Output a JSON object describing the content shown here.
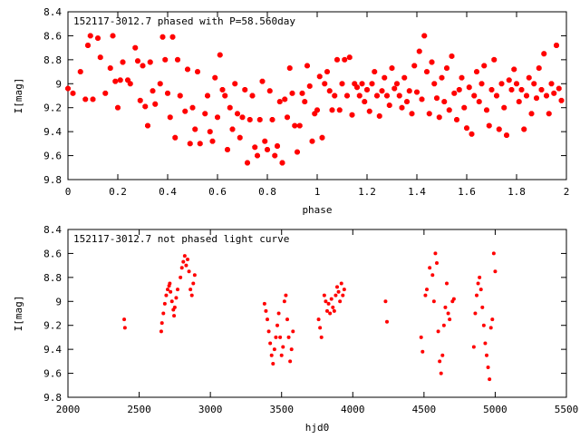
{
  "chart_data": [
    {
      "type": "scatter",
      "title": "152117-3012.7 phased with P=58.560day",
      "xlabel": "phase",
      "ylabel": "I[mag]",
      "xlim": [
        0,
        2
      ],
      "ylim": [
        8.4,
        9.8
      ],
      "y_inverted": true,
      "x_ticks": [
        "0",
        "0.2",
        "0.4",
        "0.6",
        "0.8",
        "1",
        "1.2",
        "1.4",
        "1.6",
        "1.8",
        "2"
      ],
      "y_ticks": [
        "8.4",
        "8.6",
        "8.8",
        "9",
        "9.2",
        "9.4",
        "9.6",
        "9.8"
      ],
      "grid": false,
      "marker_color": "#ff0000",
      "points": [
        [
          0.0,
          9.04
        ],
        [
          0.02,
          9.08
        ],
        [
          0.05,
          8.9
        ],
        [
          0.07,
          9.13
        ],
        [
          0.08,
          8.68
        ],
        [
          0.09,
          8.6
        ],
        [
          0.1,
          9.13
        ],
        [
          0.12,
          8.62
        ],
        [
          0.13,
          8.78
        ],
        [
          0.15,
          9.08
        ],
        [
          0.17,
          8.87
        ],
        [
          0.18,
          8.6
        ],
        [
          0.19,
          8.98
        ],
        [
          0.2,
          9.2
        ],
        [
          0.21,
          8.97
        ],
        [
          0.22,
          8.82
        ],
        [
          0.24,
          8.97
        ],
        [
          0.25,
          9.0
        ],
        [
          0.27,
          8.7
        ],
        [
          0.28,
          8.81
        ],
        [
          0.29,
          9.14
        ],
        [
          0.3,
          8.85
        ],
        [
          0.31,
          9.19
        ],
        [
          0.32,
          9.35
        ],
        [
          0.33,
          8.82
        ],
        [
          0.34,
          9.06
        ],
        [
          0.35,
          9.17
        ],
        [
          0.37,
          9.0
        ],
        [
          0.38,
          8.61
        ],
        [
          0.39,
          8.8
        ],
        [
          0.4,
          9.08
        ],
        [
          0.41,
          9.28
        ],
        [
          0.42,
          8.61
        ],
        [
          0.43,
          9.45
        ],
        [
          0.44,
          8.8
        ],
        [
          0.45,
          9.1
        ],
        [
          0.47,
          9.23
        ],
        [
          0.48,
          8.88
        ],
        [
          0.49,
          9.5
        ],
        [
          0.5,
          9.2
        ],
        [
          0.51,
          9.38
        ],
        [
          0.52,
          8.9
        ],
        [
          0.53,
          9.5
        ],
        [
          0.55,
          9.25
        ],
        [
          0.56,
          9.1
        ],
        [
          0.57,
          9.4
        ],
        [
          0.58,
          9.48
        ],
        [
          0.59,
          8.95
        ],
        [
          0.6,
          9.28
        ],
        [
          0.61,
          8.76
        ],
        [
          0.62,
          9.05
        ],
        [
          0.63,
          9.1
        ],
        [
          0.64,
          9.55
        ],
        [
          0.65,
          9.2
        ],
        [
          0.66,
          9.38
        ],
        [
          0.67,
          9.0
        ],
        [
          0.68,
          9.25
        ],
        [
          0.69,
          9.45
        ],
        [
          0.7,
          9.28
        ],
        [
          0.71,
          9.05
        ],
        [
          0.72,
          9.66
        ],
        [
          0.73,
          9.3
        ],
        [
          0.74,
          9.1
        ],
        [
          0.75,
          9.53
        ],
        [
          0.76,
          9.6
        ],
        [
          0.77,
          9.3
        ],
        [
          0.78,
          8.98
        ],
        [
          0.79,
          9.48
        ],
        [
          0.8,
          9.55
        ],
        [
          0.81,
          9.06
        ],
        [
          0.82,
          9.3
        ],
        [
          0.83,
          9.6
        ],
        [
          0.84,
          9.52
        ],
        [
          0.85,
          9.15
        ],
        [
          0.86,
          9.66
        ],
        [
          0.87,
          9.13
        ],
        [
          0.88,
          9.28
        ],
        [
          0.89,
          8.87
        ],
        [
          0.9,
          9.08
        ],
        [
          0.91,
          9.35
        ],
        [
          0.92,
          9.57
        ],
        [
          0.93,
          9.35
        ],
        [
          0.94,
          9.08
        ],
        [
          0.95,
          9.15
        ],
        [
          0.96,
          8.85
        ],
        [
          0.97,
          9.02
        ],
        [
          0.98,
          9.48
        ],
        [
          0.99,
          9.25
        ],
        [
          1.0,
          9.22
        ],
        [
          1.01,
          8.94
        ],
        [
          1.02,
          9.45
        ],
        [
          1.03,
          9.0
        ],
        [
          1.04,
          8.9
        ],
        [
          1.05,
          9.06
        ],
        [
          1.06,
          9.22
        ],
        [
          1.07,
          9.1
        ],
        [
          1.08,
          8.8
        ],
        [
          1.09,
          9.22
        ],
        [
          1.1,
          9.0
        ],
        [
          1.11,
          8.8
        ],
        [
          1.12,
          9.1
        ],
        [
          1.13,
          8.78
        ],
        [
          1.14,
          9.26
        ],
        [
          1.15,
          9.0
        ],
        [
          1.16,
          9.03
        ],
        [
          1.17,
          9.1
        ],
        [
          1.18,
          9.0
        ],
        [
          1.19,
          9.15
        ],
        [
          1.2,
          9.05
        ],
        [
          1.21,
          9.23
        ],
        [
          1.22,
          9.0
        ],
        [
          1.23,
          8.9
        ],
        [
          1.24,
          9.1
        ],
        [
          1.25,
          9.27
        ],
        [
          1.26,
          9.06
        ],
        [
          1.27,
          8.95
        ],
        [
          1.28,
          9.1
        ],
        [
          1.29,
          9.18
        ],
        [
          1.3,
          8.87
        ],
        [
          1.31,
          9.04
        ],
        [
          1.32,
          9.0
        ],
        [
          1.33,
          9.1
        ],
        [
          1.34,
          9.2
        ],
        [
          1.35,
          8.95
        ],
        [
          1.36,
          9.15
        ],
        [
          1.37,
          9.06
        ],
        [
          1.38,
          9.25
        ],
        [
          1.39,
          8.85
        ],
        [
          1.4,
          9.07
        ],
        [
          1.41,
          8.73
        ],
        [
          1.42,
          9.13
        ],
        [
          1.43,
          8.6
        ],
        [
          1.44,
          8.9
        ],
        [
          1.45,
          9.25
        ],
        [
          1.46,
          8.82
        ],
        [
          1.47,
          9.0
        ],
        [
          1.48,
          9.12
        ],
        [
          1.49,
          9.28
        ],
        [
          1.5,
          8.95
        ],
        [
          1.51,
          9.15
        ],
        [
          1.52,
          8.87
        ],
        [
          1.53,
          9.22
        ],
        [
          1.54,
          8.77
        ],
        [
          1.55,
          9.08
        ],
        [
          1.56,
          9.3
        ],
        [
          1.57,
          9.05
        ],
        [
          1.58,
          8.95
        ],
        [
          1.59,
          9.2
        ],
        [
          1.6,
          9.37
        ],
        [
          1.61,
          9.03
        ],
        [
          1.62,
          9.42
        ],
        [
          1.63,
          9.1
        ],
        [
          1.64,
          8.9
        ],
        [
          1.65,
          9.15
        ],
        [
          1.66,
          9.0
        ],
        [
          1.67,
          8.85
        ],
        [
          1.68,
          9.22
        ],
        [
          1.69,
          9.35
        ],
        [
          1.7,
          9.05
        ],
        [
          1.71,
          8.8
        ],
        [
          1.72,
          9.1
        ],
        [
          1.73,
          9.38
        ],
        [
          1.74,
          9.0
        ],
        [
          1.75,
          9.2
        ],
        [
          1.76,
          9.43
        ],
        [
          1.77,
          8.97
        ],
        [
          1.78,
          9.05
        ],
        [
          1.79,
          8.88
        ],
        [
          1.8,
          9.0
        ],
        [
          1.81,
          9.15
        ],
        [
          1.82,
          9.05
        ],
        [
          1.83,
          9.38
        ],
        [
          1.84,
          9.1
        ],
        [
          1.85,
          8.95
        ],
        [
          1.86,
          9.25
        ],
        [
          1.87,
          9.0
        ],
        [
          1.88,
          9.12
        ],
        [
          1.89,
          8.87
        ],
        [
          1.9,
          9.05
        ],
        [
          1.91,
          8.75
        ],
        [
          1.92,
          9.1
        ],
        [
          1.93,
          9.25
        ],
        [
          1.94,
          9.0
        ],
        [
          1.95,
          9.08
        ],
        [
          1.96,
          8.68
        ],
        [
          1.97,
          9.04
        ],
        [
          1.98,
          9.14
        ]
      ]
    },
    {
      "type": "scatter",
      "title": "152117-3012.7 not phased light curve",
      "xlabel": "hjd0",
      "ylabel": "I[mag]",
      "xlim": [
        2000,
        5500
      ],
      "ylim": [
        8.4,
        9.8
      ],
      "y_inverted": true,
      "x_ticks": [
        "2000",
        "2500",
        "3000",
        "3500",
        "4000",
        "4500",
        "5000",
        "5500"
      ],
      "y_ticks": [
        "8.4",
        "8.6",
        "8.8",
        "9",
        "9.2",
        "9.4",
        "9.6",
        "9.8"
      ],
      "grid": false,
      "marker_color": "#ff0000",
      "points": [
        [
          2395,
          9.15
        ],
        [
          2400,
          9.22
        ],
        [
          2655,
          9.25
        ],
        [
          2660,
          9.18
        ],
        [
          2670,
          9.1
        ],
        [
          2680,
          9.02
        ],
        [
          2690,
          8.95
        ],
        [
          2700,
          8.9
        ],
        [
          2710,
          8.87
        ],
        [
          2715,
          8.85
        ],
        [
          2720,
          8.92
        ],
        [
          2730,
          9.0
        ],
        [
          2740,
          9.07
        ],
        [
          2745,
          9.12
        ],
        [
          2750,
          9.05
        ],
        [
          2760,
          8.97
        ],
        [
          2770,
          8.9
        ],
        [
          2790,
          8.8
        ],
        [
          2800,
          8.72
        ],
        [
          2810,
          8.67
        ],
        [
          2820,
          8.62
        ],
        [
          2830,
          8.7
        ],
        [
          2840,
          8.65
        ],
        [
          2850,
          8.75
        ],
        [
          2860,
          8.9
        ],
        [
          2870,
          8.95
        ],
        [
          2880,
          8.85
        ],
        [
          2890,
          8.78
        ],
        [
          3380,
          9.02
        ],
        [
          3390,
          9.08
        ],
        [
          3400,
          9.15
        ],
        [
          3410,
          9.25
        ],
        [
          3420,
          9.35
        ],
        [
          3430,
          9.45
        ],
        [
          3440,
          9.52
        ],
        [
          3450,
          9.4
        ],
        [
          3460,
          9.3
        ],
        [
          3470,
          9.2
        ],
        [
          3480,
          9.1
        ],
        [
          3490,
          9.3
        ],
        [
          3500,
          9.45
        ],
        [
          3510,
          9.38
        ],
        [
          3520,
          9.0
        ],
        [
          3530,
          8.95
        ],
        [
          3540,
          9.15
        ],
        [
          3550,
          9.3
        ],
        [
          3560,
          9.5
        ],
        [
          3570,
          9.4
        ],
        [
          3580,
          9.25
        ],
        [
          3760,
          9.15
        ],
        [
          3770,
          9.22
        ],
        [
          3780,
          9.3
        ],
        [
          3800,
          8.95
        ],
        [
          3810,
          9.0
        ],
        [
          3820,
          9.08
        ],
        [
          3830,
          9.02
        ],
        [
          3840,
          9.1
        ],
        [
          3850,
          8.98
        ],
        [
          3860,
          9.05
        ],
        [
          3870,
          9.08
        ],
        [
          3880,
          8.95
        ],
        [
          3890,
          8.88
        ],
        [
          3900,
          8.92
        ],
        [
          3910,
          9.0
        ],
        [
          3920,
          8.85
        ],
        [
          3930,
          8.95
        ],
        [
          3940,
          8.9
        ],
        [
          4230,
          9.0
        ],
        [
          4240,
          9.17
        ],
        [
          4480,
          9.3
        ],
        [
          4490,
          9.42
        ],
        [
          4510,
          8.95
        ],
        [
          4520,
          8.9
        ],
        [
          4540,
          8.72
        ],
        [
          4560,
          8.78
        ],
        [
          4570,
          9.0
        ],
        [
          4580,
          8.6
        ],
        [
          4590,
          8.68
        ],
        [
          4600,
          9.25
        ],
        [
          4610,
          9.5
        ],
        [
          4620,
          9.6
        ],
        [
          4630,
          9.45
        ],
        [
          4640,
          9.2
        ],
        [
          4650,
          9.05
        ],
        [
          4660,
          8.85
        ],
        [
          4670,
          9.1
        ],
        [
          4680,
          9.15
        ],
        [
          4700,
          9.0
        ],
        [
          4710,
          8.98
        ],
        [
          4850,
          9.38
        ],
        [
          4860,
          9.1
        ],
        [
          4870,
          8.95
        ],
        [
          4880,
          8.85
        ],
        [
          4890,
          8.8
        ],
        [
          4900,
          8.9
        ],
        [
          4910,
          9.05
        ],
        [
          4920,
          9.2
        ],
        [
          4930,
          9.35
        ],
        [
          4940,
          9.45
        ],
        [
          4950,
          9.55
        ],
        [
          4960,
          9.65
        ],
        [
          4970,
          9.22
        ],
        [
          4980,
          9.15
        ],
        [
          4990,
          8.6
        ],
        [
          5000,
          8.75
        ]
      ]
    }
  ]
}
